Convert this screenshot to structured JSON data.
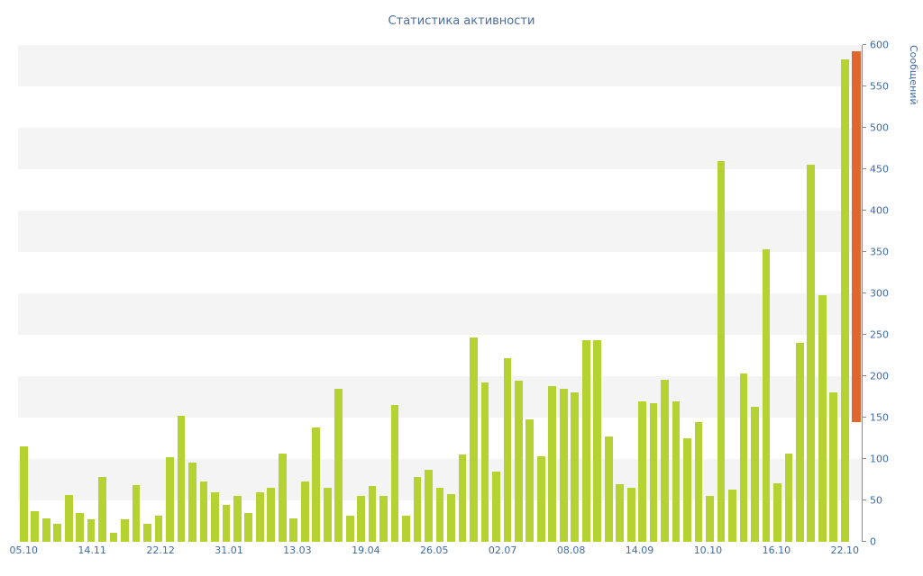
{
  "page": {
    "background": "#ffffff"
  },
  "chart_data": {
    "type": "bar",
    "title": "Статистика активности",
    "ylabel": "Сообщений",
    "xlabel": "",
    "ylim": [
      0,
      600
    ],
    "yticks": [
      0,
      50,
      100,
      150,
      200,
      250,
      300,
      350,
      400,
      450,
      500,
      550,
      600
    ],
    "x_tick_labels": [
      "05.10",
      "14.11",
      "22.12",
      "31.01",
      "13.03",
      "19.04",
      "26.05",
      "02.07",
      "08.08",
      "14.09",
      "10.10",
      "16.10",
      "22.10"
    ],
    "grid": "alternating horizontal 50-unit bands",
    "legend": "none",
    "bar_color": "#b4d333",
    "band_color": "#f4f4f4",
    "title_color": "#4a6d9e",
    "axis_text_color": "#3d6ba8",
    "axis_line_color": "#8c8c8c",
    "values": [
      115,
      37,
      28,
      22,
      57,
      35,
      27,
      78,
      11,
      27,
      68,
      22,
      31,
      102,
      152,
      96,
      73,
      60,
      45,
      55,
      35,
      60,
      65,
      107,
      28,
      73,
      138,
      65,
      185,
      32,
      55,
      67,
      55,
      165,
      32,
      78,
      87,
      65,
      58,
      105,
      247,
      192,
      85,
      222,
      195,
      148,
      103,
      188,
      185,
      180,
      243,
      243,
      127,
      70,
      65,
      170,
      167,
      196,
      170,
      125,
      145,
      55,
      460,
      63,
      203,
      163,
      353,
      71,
      107,
      240,
      455,
      298,
      180,
      583
    ],
    "last_bar": {
      "value": 592,
      "base": 145,
      "color": "#e0662e"
    }
  }
}
